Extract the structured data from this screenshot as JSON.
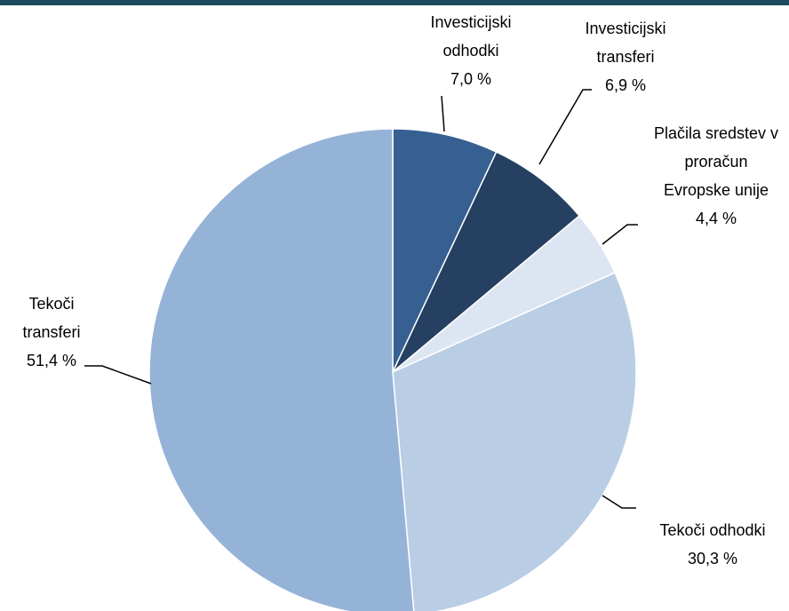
{
  "chart_data": {
    "type": "pie",
    "categories": [
      "Investicijski odhodki",
      "Investicijski transferi",
      "Plačila sredstev v proračun Evropske unije",
      "Tekoči odhodki",
      "Tekoči transferi"
    ],
    "values": [
      7.0,
      6.9,
      4.4,
      30.3,
      51.4
    ],
    "value_labels": [
      "7,0 %",
      "6,9 %",
      "4,4 %",
      "30,3 %",
      "51,4 %"
    ],
    "colors": [
      "#376092",
      "#254061",
      "#dce6f2",
      "#b9cde5",
      "#95b3d7"
    ]
  }
}
